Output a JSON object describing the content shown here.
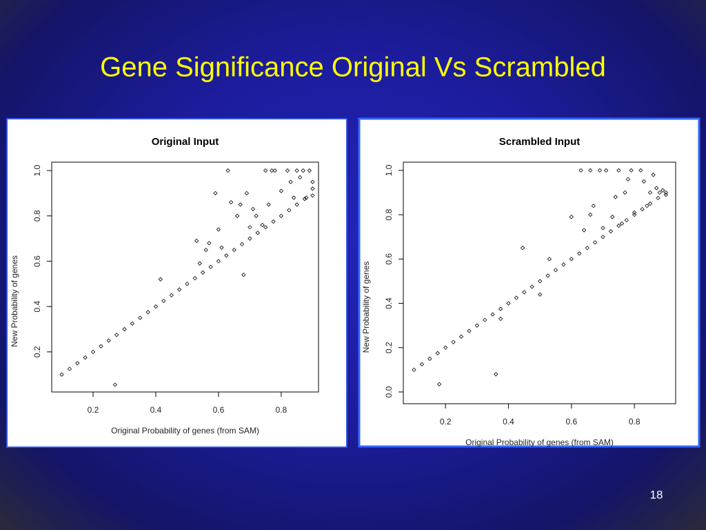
{
  "title": "Gene Significance Original Vs Scrambled",
  "page_number": "18",
  "chart_data": [
    {
      "type": "scatter",
      "title": "Original Input",
      "x_label": "Original Probability of genes (from SAM)",
      "y_label": "New Probability of genes",
      "x": [
        0.1,
        0.125,
        0.15,
        0.175,
        0.2,
        0.225,
        0.25,
        0.275,
        0.3,
        0.325,
        0.35,
        0.375,
        0.4,
        0.425,
        0.45,
        0.475,
        0.5,
        0.525,
        0.55,
        0.575,
        0.6,
        0.625,
        0.65,
        0.675,
        0.7,
        0.725,
        0.75,
        0.775,
        0.8,
        0.825,
        0.85,
        0.875,
        0.9,
        0.27,
        0.415,
        0.53,
        0.54,
        0.56,
        0.57,
        0.59,
        0.6,
        0.61,
        0.63,
        0.64,
        0.66,
        0.67,
        0.68,
        0.69,
        0.7,
        0.71,
        0.72,
        0.75,
        0.77,
        0.78,
        0.8,
        0.82,
        0.83,
        0.85,
        0.86,
        0.87,
        0.88,
        0.89,
        0.9,
        0.9,
        0.76,
        0.74,
        0.84
      ],
      "values": [
        0.1,
        0.125,
        0.15,
        0.175,
        0.2,
        0.225,
        0.25,
        0.275,
        0.3,
        0.325,
        0.35,
        0.375,
        0.4,
        0.425,
        0.45,
        0.475,
        0.5,
        0.525,
        0.55,
        0.575,
        0.6,
        0.625,
        0.65,
        0.675,
        0.7,
        0.725,
        0.75,
        0.775,
        0.8,
        0.825,
        0.85,
        0.875,
        0.89,
        0.055,
        0.52,
        0.69,
        0.59,
        0.65,
        0.68,
        0.9,
        0.74,
        0.66,
        1.0,
        0.86,
        0.8,
        0.85,
        0.54,
        0.9,
        0.75,
        0.83,
        0.8,
        1.0,
        1.0,
        1.0,
        0.91,
        1.0,
        0.95,
        1.0,
        0.97,
        1.0,
        0.88,
        1.0,
        0.95,
        0.92,
        0.85,
        0.76,
        0.88
      ],
      "color": "#000000",
      "xlim": [
        0.068,
        0.919
      ],
      "ylim": [
        0.023,
        1.037
      ],
      "xticks": [
        0.2,
        0.4,
        0.6,
        0.8
      ],
      "yticks": [
        0.2,
        0.4,
        0.6,
        0.8,
        {
          "value": 1,
          "label": "1.0"
        }
      ]
    },
    {
      "type": "scatter",
      "title": "Scrambled Input",
      "x_label": "Original Probability of genes (from SAM)",
      "y_label": "New Probability of genes",
      "x": [
        0.1,
        0.125,
        0.15,
        0.175,
        0.2,
        0.225,
        0.25,
        0.275,
        0.3,
        0.325,
        0.35,
        0.375,
        0.4,
        0.425,
        0.45,
        0.475,
        0.5,
        0.525,
        0.55,
        0.575,
        0.6,
        0.625,
        0.65,
        0.675,
        0.7,
        0.725,
        0.75,
        0.775,
        0.8,
        0.825,
        0.85,
        0.875,
        0.9,
        0.18,
        0.36,
        0.375,
        0.445,
        0.5,
        0.53,
        0.6,
        0.63,
        0.66,
        0.64,
        0.66,
        0.67,
        0.69,
        0.71,
        0.73,
        0.74,
        0.75,
        0.77,
        0.78,
        0.79,
        0.8,
        0.82,
        0.83,
        0.84,
        0.85,
        0.86,
        0.87,
        0.88,
        0.89,
        0.9,
        0.76,
        0.7
      ],
      "values": [
        0.1,
        0.125,
        0.15,
        0.175,
        0.2,
        0.225,
        0.25,
        0.275,
        0.3,
        0.325,
        0.35,
        0.375,
        0.4,
        0.425,
        0.45,
        0.475,
        0.5,
        0.525,
        0.55,
        0.575,
        0.6,
        0.625,
        0.65,
        0.675,
        0.7,
        0.725,
        0.75,
        0.775,
        0.8,
        0.825,
        0.85,
        0.875,
        0.89,
        0.035,
        0.08,
        0.33,
        0.65,
        0.44,
        0.6,
        0.79,
        1.0,
        1.0,
        0.73,
        0.8,
        0.84,
        1.0,
        1.0,
        0.79,
        0.88,
        1.0,
        0.9,
        0.96,
        1.0,
        0.81,
        1.0,
        0.95,
        0.84,
        0.9,
        0.98,
        0.92,
        0.9,
        0.91,
        0.9,
        0.76,
        0.74
      ],
      "color": "#000000",
      "xlim": [
        0.066,
        0.931
      ],
      "ylim": [
        -0.053,
        1.037
      ],
      "xticks": [
        0.2,
        0.4,
        0.6,
        0.8
      ],
      "yticks": [
        {
          "value": 0,
          "label": "0.0"
        },
        0.2,
        0.4,
        0.6,
        0.8,
        {
          "value": 1,
          "label": "1.0"
        }
      ]
    }
  ]
}
